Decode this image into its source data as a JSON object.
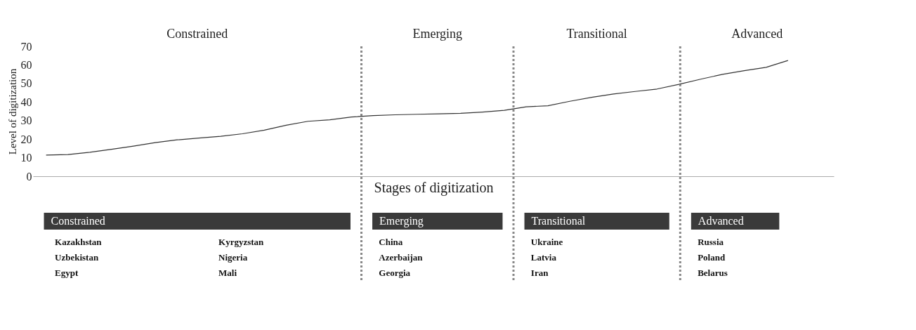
{
  "chart_data": {
    "type": "line",
    "xlabel": "Stages of digitization",
    "ylabel": "Level of digitization",
    "categories": [
      null,
      null,
      null,
      null,
      null,
      null,
      null,
      null,
      null,
      null,
      null,
      null,
      null,
      null,
      null,
      null,
      null,
      null,
      null,
      null,
      null,
      null,
      null,
      null,
      null,
      null,
      null,
      null,
      null,
      null,
      null,
      null,
      null,
      null,
      null
    ],
    "values": [
      11.4,
      11.7,
      12.9,
      14.5,
      16.2,
      18.1,
      19.6,
      20.6,
      21.5,
      22.9,
      24.8,
      27.5,
      29.6,
      30.4,
      31.9,
      32.7,
      33.1,
      33.4,
      33.6,
      33.9,
      34.6,
      35.5,
      37.4,
      38.0,
      40.4,
      42.5,
      44.3,
      45.7,
      47.0,
      49.5,
      52.3,
      54.9,
      56.9,
      58.7,
      62.4
    ],
    "color": "#333333",
    "ylim": [
      0,
      70
    ],
    "yticks": [
      0,
      10,
      20,
      30,
      40,
      50,
      60,
      70
    ],
    "grid": false,
    "annotations": [
      "Constrained",
      "Emerging",
      "Transitional",
      "Advanced",
      "Constrained",
      "Emerging",
      "Transitional",
      "Advanced",
      "Kazakhstan",
      "Kyrgyzstan",
      "Uzbekistan",
      "Nigeria",
      "Egypt",
      "Mali",
      "China",
      "Azerbaijan",
      "Georgia",
      "Ukraine",
      "Latvia",
      "Iran",
      "Russia",
      "Poland",
      "Belarus"
    ]
  }
}
